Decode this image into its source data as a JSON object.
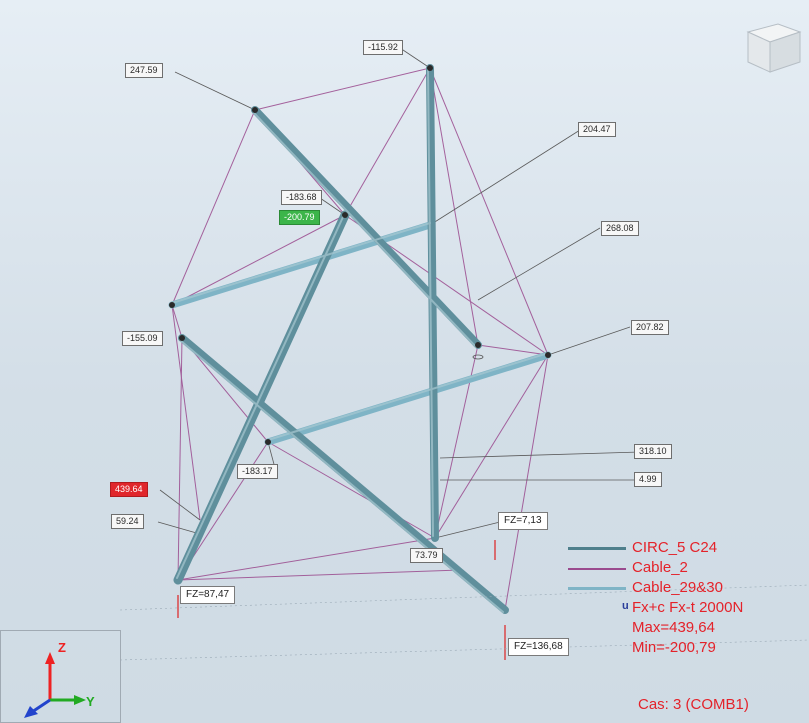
{
  "member_labels": [
    {
      "id": "top-left-node",
      "value": "247.59"
    },
    {
      "id": "top-node",
      "value": "-115.92"
    },
    {
      "id": "upper-right-cable",
      "value": "204.47"
    },
    {
      "id": "upper-center-node",
      "value": "-183.68"
    },
    {
      "id": "min-force",
      "value": "-200.79"
    },
    {
      "id": "right-cable",
      "value": "268.08"
    },
    {
      "id": "left-node",
      "value": "-155.09"
    },
    {
      "id": "right-node",
      "value": "207.82"
    },
    {
      "id": "lower-right-cable",
      "value": "318.10"
    },
    {
      "id": "lower-right-small",
      "value": "4.99"
    },
    {
      "id": "lower-center-node",
      "value": "-183.17"
    },
    {
      "id": "max-force",
      "value": "439.64"
    },
    {
      "id": "lower-left-cable",
      "value": "59.24"
    },
    {
      "id": "bottom-center",
      "value": "73.79"
    }
  ],
  "reactions": {
    "fz_left": "FZ=87,47",
    "fz_center": "FZ=7,13",
    "fz_right": "FZ=136,68"
  },
  "legend": {
    "item1": "CIRC_5 C24",
    "item2": "Cable_2",
    "item3": "Cable_29&30",
    "item4": "Fx+c Fx-t  2000N",
    "max": "Max=439,64",
    "min": "Min=-200,79",
    "case": "Cas: 3 (COMB1)"
  },
  "axes": {
    "z": "Z",
    "y": "Y"
  },
  "colors": {
    "strut": "#5f8f9c",
    "cable_purple": "#9a4a8e",
    "cable_light": "#7fb4c6",
    "legend_text": "#e4222a",
    "max_badge": "#e0262b",
    "min_badge": "#3cb54a"
  }
}
